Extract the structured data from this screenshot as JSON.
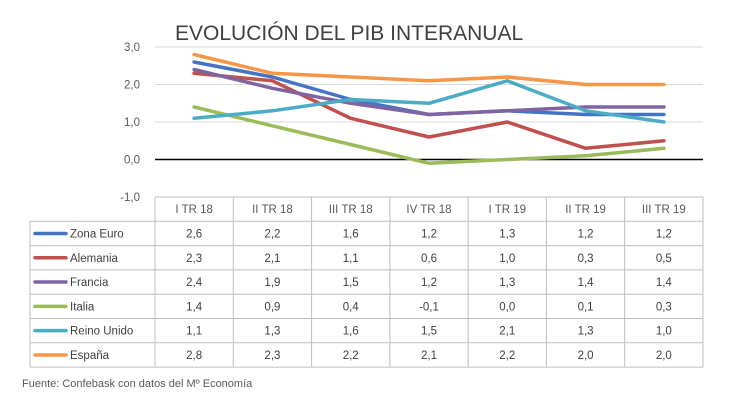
{
  "chart_data": {
    "type": "line",
    "title": "EVOLUCIÓN DEL PIB INTERANUAL",
    "categories": [
      "I TR 18",
      "II TR 18",
      "III TR 18",
      "IV TR 18",
      "I TR 19",
      "II TR 19",
      "III TR 19"
    ],
    "ylim": [
      -1.0,
      3.0
    ],
    "yticks": [
      "3,0",
      "2,0",
      "1,0",
      "0,0",
      "-1,0"
    ],
    "ytick_values": [
      3,
      2,
      1,
      0,
      -1
    ],
    "grid": true,
    "legend": "data-table",
    "series": [
      {
        "name": "Zona Euro",
        "color": "#4472C4",
        "values": [
          2.6,
          2.2,
          1.6,
          1.2,
          1.3,
          1.2,
          1.2
        ],
        "labels": [
          "2,6",
          "2,2",
          "1,6",
          "1,2",
          "1,3",
          "1,2",
          "1,2"
        ]
      },
      {
        "name": "Alemania",
        "color": "#C0504D",
        "values": [
          2.3,
          2.1,
          1.1,
          0.6,
          1.0,
          0.3,
          0.5
        ],
        "labels": [
          "2,3",
          "2,1",
          "1,1",
          "0,6",
          "1,0",
          "0,3",
          "0,5"
        ]
      },
      {
        "name": "Francia",
        "color": "#8064A2",
        "values": [
          2.4,
          1.9,
          1.5,
          1.2,
          1.3,
          1.4,
          1.4
        ],
        "labels": [
          "2,4",
          "1,9",
          "1,5",
          "1,2",
          "1,3",
          "1,4",
          "1,4"
        ]
      },
      {
        "name": "Italia",
        "color": "#9BBB59",
        "values": [
          1.4,
          0.9,
          0.4,
          -0.1,
          0.0,
          0.1,
          0.3
        ],
        "labels": [
          "1,4",
          "0,9",
          "0,4",
          "-0,1",
          "0,0",
          "0,1",
          "0,3"
        ]
      },
      {
        "name": "Reino Unido",
        "color": "#4BACC6",
        "values": [
          1.1,
          1.3,
          1.6,
          1.5,
          2.1,
          1.3,
          1.0
        ],
        "labels": [
          "1,1",
          "1,3",
          "1,6",
          "1,5",
          "2,1",
          "1,3",
          "1,0"
        ]
      },
      {
        "name": "España",
        "color": "#F79646",
        "values": [
          2.8,
          2.3,
          2.2,
          2.1,
          2.2,
          2.0,
          2.0
        ],
        "labels": [
          "2,8",
          "2,3",
          "2,2",
          "2,1",
          "2,2",
          "2,0",
          "2,0"
        ]
      }
    ]
  },
  "source": "Fuente: Confebask con datos del Mº Economía"
}
